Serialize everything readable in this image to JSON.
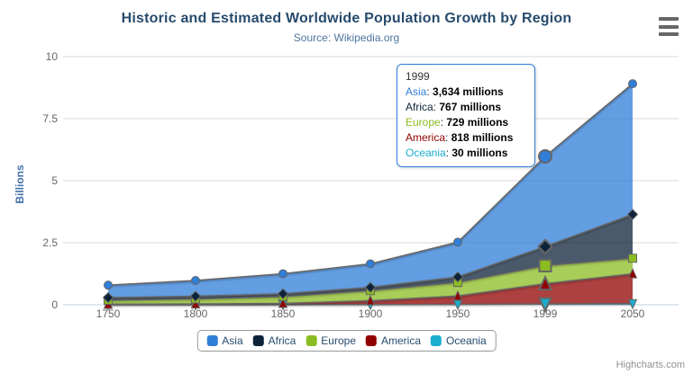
{
  "header": {
    "title": "Historic and Estimated Worldwide Population Growth by Region",
    "subtitle": "Source: Wikipedia.org"
  },
  "chart_data": {
    "type": "area",
    "stacking": "normal",
    "title": "Historic and Estimated Worldwide Population Growth by Region",
    "subtitle": "Source: Wikipedia.org",
    "categories": [
      "1750",
      "1800",
      "1850",
      "1900",
      "1950",
      "1999",
      "2050"
    ],
    "xlabel": "",
    "ylabel": "Billions",
    "unit": "millions",
    "ylim": [
      0,
      10
    ],
    "yticks": [
      0,
      2.5,
      5,
      7.5,
      10
    ],
    "grid": true,
    "legend_position": "bottom",
    "line_color": "#666666",
    "fill_opacity": 0.75,
    "grid_color": "#d8d8d8",
    "axis_line_color": "#c0d0e0",
    "hover_index": 5,
    "series": [
      {
        "name": "Asia",
        "color": "#2f7ed8",
        "symbol": "circle",
        "values_millions": [
          502,
          635,
          809,
          947,
          1402,
          3634,
          5268
        ]
      },
      {
        "name": "Africa",
        "color": "#0d233a",
        "symbol": "diamond",
        "values_millions": [
          106,
          107,
          111,
          133,
          221,
          767,
          1766
        ]
      },
      {
        "name": "Europe",
        "color": "#8bbc21",
        "symbol": "square",
        "values_millions": [
          163,
          203,
          276,
          408,
          547,
          729,
          628
        ]
      },
      {
        "name": "America",
        "color": "#910000",
        "symbol": "triangle",
        "values_millions": [
          18,
          31,
          54,
          156,
          339,
          818,
          1201
        ]
      },
      {
        "name": "Oceania",
        "color": "#1aadce",
        "symbol": "triangle-down",
        "values_millions": [
          2,
          2,
          2,
          6,
          13,
          30,
          46
        ]
      }
    ]
  },
  "tooltip": {
    "title": "1999",
    "border_color": "#2f7ed8",
    "rows": [
      {
        "name": "Asia",
        "color": "#2f7ed8",
        "value": "3,634 millions"
      },
      {
        "name": "Africa",
        "color": "#0d233a",
        "value": "767 millions"
      },
      {
        "name": "Europe",
        "color": "#8bbc21",
        "value": "729 millions"
      },
      {
        "name": "America",
        "color": "#910000",
        "value": "818 millions"
      },
      {
        "name": "Oceania",
        "color": "#1aadce",
        "value": "30 millions"
      }
    ]
  },
  "styles": {
    "title_color": "#274b6d",
    "subtitle_color": "#4d759e",
    "axis_label_color": "#666666",
    "yaxis_title_color": "#4572a7",
    "legend_text_color": "#274b6d",
    "credits_color": "#909090"
  },
  "credits": {
    "label": "Highcharts.com"
  }
}
